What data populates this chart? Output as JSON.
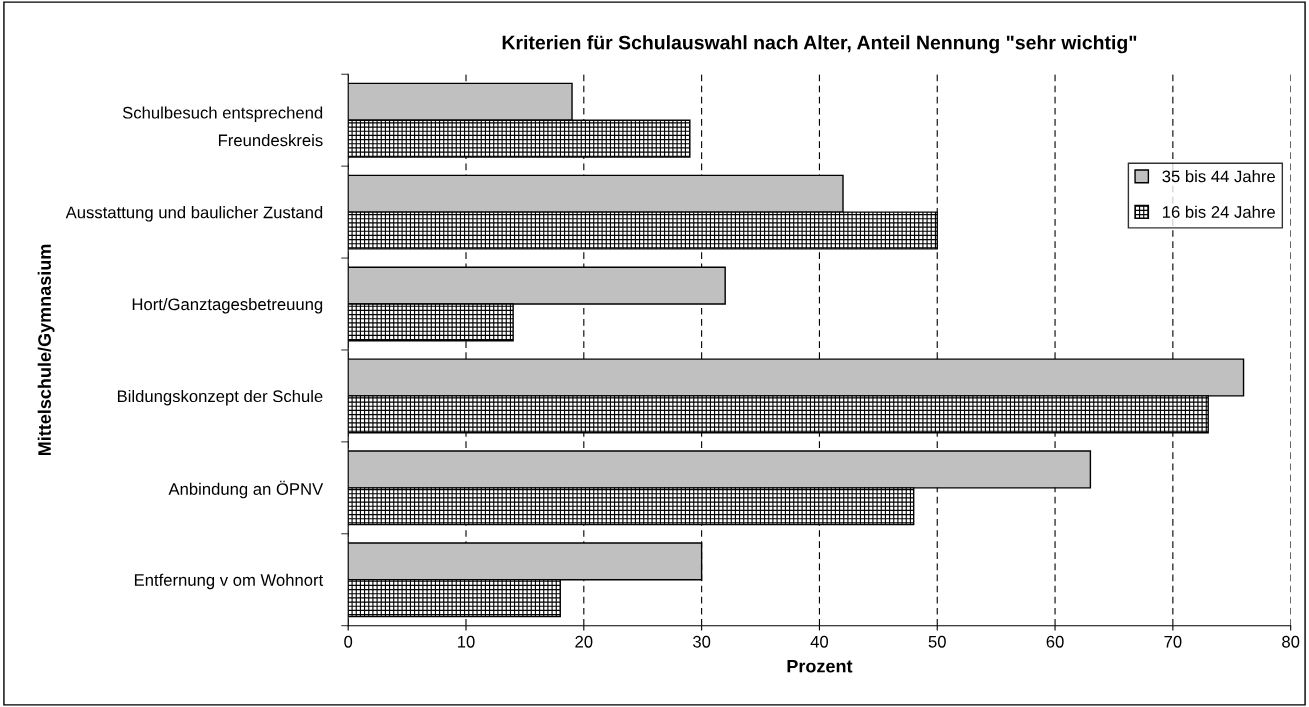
{
  "chart_data": {
    "type": "bar",
    "orientation": "horizontal",
    "title": "Kriterien für Schulauswahl nach Alter, Anteil Nennung \"sehr wichtig\"",
    "xlabel": "Prozent",
    "ylabel": "Mittelschule/Gymnasium",
    "categories": [
      "Schulbesuch entsprechend\nFreundeskreis",
      "Ausstattung und baulicher Zustand",
      "Hort/Ganztagesbetreuung",
      "Bildungskonzept der Schule",
      "Anbindung an ÖPNV",
      "Entfernung v om Wohnort"
    ],
    "series": [
      {
        "name": "35 bis 44 Jahre",
        "color": "#c0c0c0",
        "values": [
          19,
          42,
          32,
          76,
          63,
          30
        ]
      },
      {
        "name": "16 bis 24 Jahre",
        "color": "#000000",
        "values": [
          29,
          50,
          14,
          73,
          48,
          18
        ]
      }
    ],
    "xlim": [
      0,
      80
    ],
    "xticks": [
      0,
      10,
      20,
      30,
      40,
      50,
      60,
      70,
      80
    ],
    "grid": "x",
    "legend": "right"
  }
}
